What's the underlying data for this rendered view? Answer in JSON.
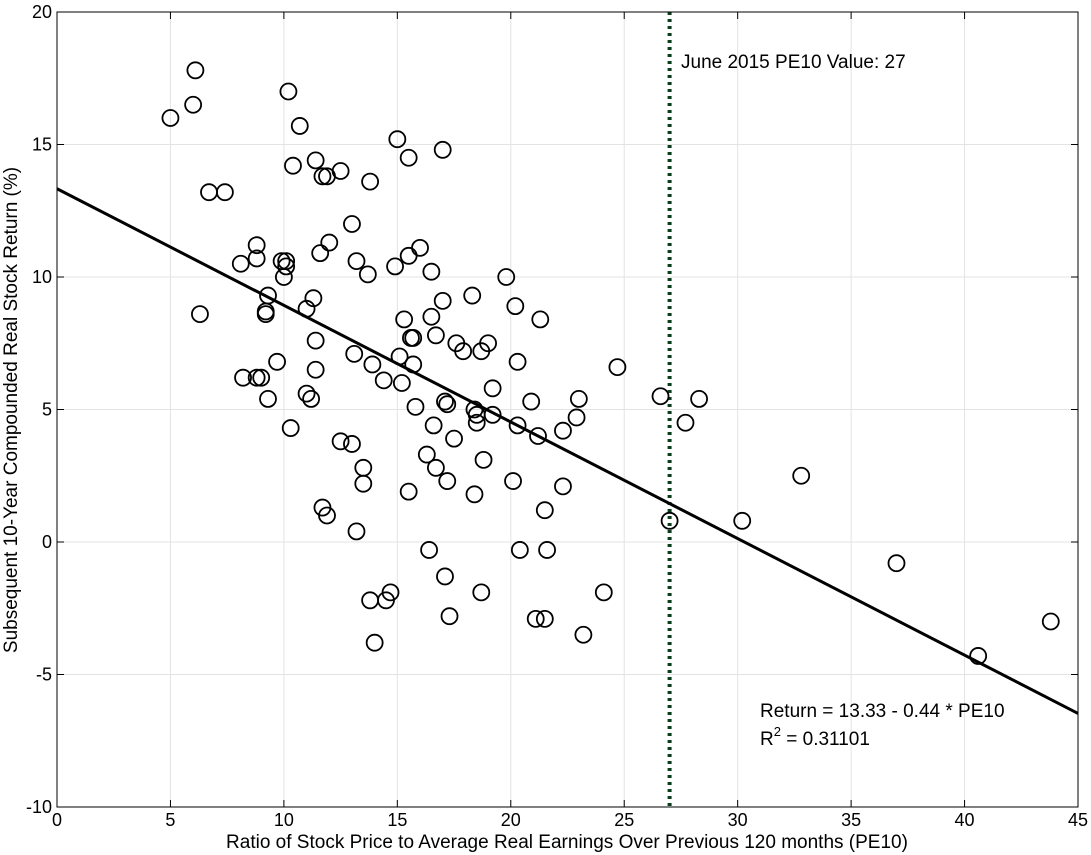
{
  "chart_data": {
    "type": "scatter",
    "title": "",
    "xlabel": "Ratio of Stock Price to Average Real Earnings Over Previous 120 months (PE10)",
    "ylabel": "Subsequent 10-Year Compounded Real Stock Return (%)",
    "xlim": [
      0,
      45
    ],
    "ylim": [
      -10,
      20
    ],
    "xticks": [
      0,
      5,
      10,
      15,
      20,
      25,
      30,
      35,
      40,
      45
    ],
    "yticks": [
      -10,
      -5,
      0,
      5,
      10,
      15,
      20
    ],
    "xtick_labels": [
      "0",
      "5",
      "10",
      "15",
      "20",
      "25",
      "30",
      "35",
      "40",
      "45"
    ],
    "ytick_labels": [
      "-10",
      "-5",
      "0",
      "5",
      "10",
      "15",
      "20"
    ],
    "grid": true,
    "points": [
      [
        5.0,
        16.0
      ],
      [
        6.0,
        16.5
      ],
      [
        6.1,
        17.8
      ],
      [
        6.3,
        8.6
      ],
      [
        6.7,
        13.2
      ],
      [
        7.4,
        13.2
      ],
      [
        8.1,
        10.5
      ],
      [
        8.2,
        6.2
      ],
      [
        8.8,
        11.2
      ],
      [
        8.8,
        10.7
      ],
      [
        8.8,
        6.2
      ],
      [
        9.0,
        6.2
      ],
      [
        9.2,
        8.6
      ],
      [
        9.2,
        8.7
      ],
      [
        9.3,
        9.3
      ],
      [
        9.3,
        5.4
      ],
      [
        9.7,
        6.8
      ],
      [
        9.9,
        10.6
      ],
      [
        10.0,
        10.0
      ],
      [
        10.1,
        10.4
      ],
      [
        10.1,
        10.6
      ],
      [
        10.2,
        17.0
      ],
      [
        10.3,
        4.3
      ],
      [
        10.4,
        14.2
      ],
      [
        10.7,
        15.7
      ],
      [
        11.0,
        8.8
      ],
      [
        11.0,
        5.6
      ],
      [
        11.2,
        5.4
      ],
      [
        11.3,
        9.2
      ],
      [
        11.4,
        7.6
      ],
      [
        11.4,
        6.5
      ],
      [
        11.4,
        14.4
      ],
      [
        11.6,
        10.9
      ],
      [
        11.7,
        13.8
      ],
      [
        11.7,
        1.3
      ],
      [
        11.9,
        1.0
      ],
      [
        11.9,
        13.8
      ],
      [
        12.0,
        11.3
      ],
      [
        12.5,
        14.0
      ],
      [
        12.5,
        3.8
      ],
      [
        13.0,
        12.0
      ],
      [
        13.0,
        3.7
      ],
      [
        13.1,
        7.1
      ],
      [
        13.2,
        10.6
      ],
      [
        13.2,
        0.4
      ],
      [
        13.5,
        2.8
      ],
      [
        13.5,
        2.2
      ],
      [
        13.7,
        10.1
      ],
      [
        13.8,
        13.6
      ],
      [
        13.8,
        -2.2
      ],
      [
        13.9,
        6.7
      ],
      [
        14.0,
        -3.8
      ],
      [
        14.4,
        6.1
      ],
      [
        14.5,
        -2.2
      ],
      [
        14.7,
        -1.9
      ],
      [
        14.9,
        10.4
      ],
      [
        15.0,
        15.2
      ],
      [
        15.1,
        7.0
      ],
      [
        15.2,
        6.0
      ],
      [
        15.3,
        8.4
      ],
      [
        15.5,
        14.5
      ],
      [
        15.5,
        10.8
      ],
      [
        15.5,
        1.9
      ],
      [
        15.6,
        7.7
      ],
      [
        15.7,
        7.7
      ],
      [
        15.7,
        6.7
      ],
      [
        15.8,
        5.1
      ],
      [
        16.0,
        11.1
      ],
      [
        16.3,
        3.3
      ],
      [
        16.4,
        -0.3
      ],
      [
        16.5,
        8.5
      ],
      [
        16.5,
        10.2
      ],
      [
        16.6,
        4.4
      ],
      [
        16.7,
        7.8
      ],
      [
        16.7,
        2.8
      ],
      [
        17.0,
        14.8
      ],
      [
        17.0,
        9.1
      ],
      [
        17.1,
        5.3
      ],
      [
        17.1,
        -1.3
      ],
      [
        17.2,
        5.2
      ],
      [
        17.2,
        2.3
      ],
      [
        17.3,
        -2.8
      ],
      [
        17.5,
        3.9
      ],
      [
        17.6,
        7.5
      ],
      [
        17.9,
        7.2
      ],
      [
        18.3,
        9.3
      ],
      [
        18.4,
        5.0
      ],
      [
        18.4,
        1.8
      ],
      [
        18.5,
        4.8
      ],
      [
        18.5,
        4.5
      ],
      [
        18.7,
        7.2
      ],
      [
        18.7,
        -1.9
      ],
      [
        18.8,
        3.1
      ],
      [
        19.0,
        7.5
      ],
      [
        19.2,
        4.8
      ],
      [
        19.2,
        5.8
      ],
      [
        19.8,
        10.0
      ],
      [
        20.1,
        2.3
      ],
      [
        20.2,
        8.9
      ],
      [
        20.3,
        4.4
      ],
      [
        20.3,
        6.8
      ],
      [
        20.4,
        -0.3
      ],
      [
        20.9,
        5.3
      ],
      [
        21.1,
        -2.9
      ],
      [
        21.2,
        4.0
      ],
      [
        21.3,
        8.4
      ],
      [
        21.5,
        -2.9
      ],
      [
        21.5,
        1.2
      ],
      [
        21.6,
        -0.3
      ],
      [
        22.3,
        4.2
      ],
      [
        22.3,
        2.1
      ],
      [
        22.9,
        4.7
      ],
      [
        23.0,
        5.4
      ],
      [
        23.2,
        -3.5
      ],
      [
        24.1,
        -1.9
      ],
      [
        24.7,
        6.6
      ],
      [
        26.6,
        5.5
      ],
      [
        27.0,
        0.8
      ],
      [
        27.7,
        4.5
      ],
      [
        28.3,
        5.4
      ],
      [
        30.2,
        0.8
      ],
      [
        32.8,
        2.5
      ],
      [
        37.0,
        -0.8
      ],
      [
        40.6,
        -4.3
      ],
      [
        43.8,
        -3.0
      ]
    ],
    "fit_line": {
      "intercept": 13.33,
      "slope": -0.44,
      "x_range": [
        0,
        45
      ]
    },
    "vline": {
      "x": 27,
      "style": "dotted",
      "color": "#0b3d1b"
    },
    "colors": {
      "points": "#000000",
      "line": "#000000",
      "grid": "#e3e3e3",
      "vline": "#0b3d1b"
    },
    "annotations": {
      "vline_label": "June 2015 PE10 Value: 27",
      "equation": "Return = 13.33 - 0.44 * PE10",
      "r2_prefix": "R",
      "r2_sup": "2",
      "r2_value": " = 0.31101"
    }
  }
}
